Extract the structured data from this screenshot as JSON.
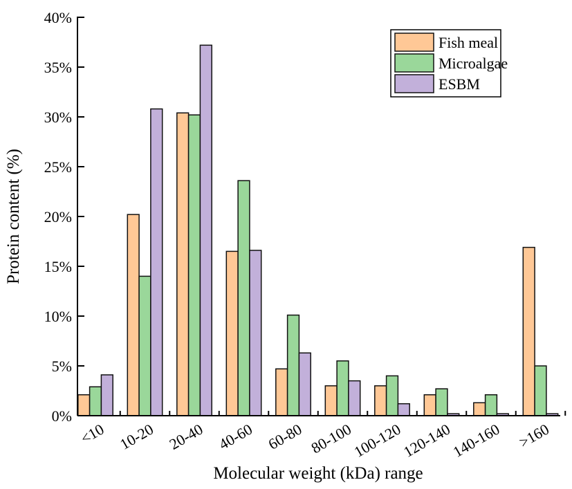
{
  "chart_data": {
    "type": "bar",
    "title": "",
    "xlabel": "Molecular weight (kDa)  range",
    "ylabel": "Protein content (%)",
    "ylim": [
      0,
      40
    ],
    "yticks": [
      "0%",
      "5%",
      "10%",
      "15%",
      "20%",
      "25%",
      "30%",
      "35%",
      "40%"
    ],
    "categories": [
      "<10",
      "10-20",
      "20-40",
      "40-60",
      "60-80",
      "80-100",
      "100-120",
      "120-140",
      "140-160",
      ">160"
    ],
    "legend_position": "top-right",
    "series": [
      {
        "name": "Fish meal",
        "color": "#FFC896",
        "values": [
          2.1,
          20.2,
          30.4,
          16.5,
          4.7,
          3.0,
          3.0,
          2.1,
          1.3,
          16.9
        ]
      },
      {
        "name": "Microalgae",
        "color": "#9AD79A",
        "values": [
          2.9,
          14.0,
          30.2,
          23.6,
          10.1,
          5.5,
          4.0,
          2.7,
          2.1,
          5.0
        ]
      },
      {
        "name": "ESBM",
        "color": "#C2B0DA",
        "values": [
          4.1,
          30.8,
          37.2,
          16.6,
          6.3,
          3.5,
          1.2,
          0.2,
          0.2,
          0.2
        ]
      }
    ]
  }
}
